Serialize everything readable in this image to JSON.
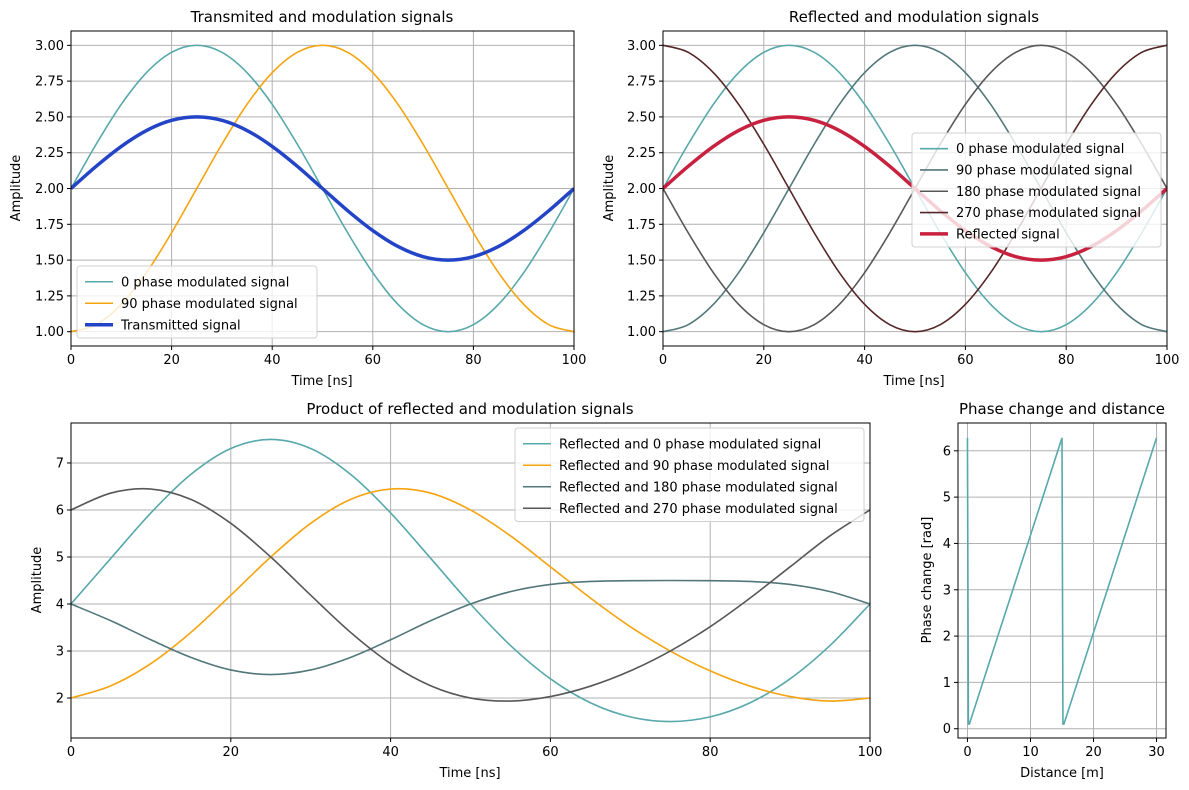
{
  "colors": {
    "teal": "#57a8ab",
    "orange": "#f5a30e",
    "slate": "#52777a",
    "darkgray": "#575757",
    "maroon": "#552627",
    "blue": "#2444c8",
    "crimson": "#c8213f"
  },
  "chart_data": [
    {
      "id": "transmitted",
      "type": "line",
      "title": "Transmited and modulation signals",
      "xlabel": "Time [ns]",
      "ylabel": "Amplitude",
      "xlim": [
        0,
        100
      ],
      "ylim": [
        0.9,
        3.1
      ],
      "xticks": [
        0,
        20,
        40,
        60,
        80,
        100
      ],
      "xticklabels": [
        "0",
        "20",
        "40",
        "60",
        "80",
        "100"
      ],
      "yticks": [
        1.0,
        1.25,
        1.5,
        1.75,
        2.0,
        2.25,
        2.5,
        2.75,
        3.0
      ],
      "yticklabels": [
        "1.00",
        "1.25",
        "1.50",
        "1.75",
        "2.00",
        "2.25",
        "2.50",
        "2.75",
        "3.00"
      ],
      "grid": true,
      "legend": "bottom-left",
      "series": [
        {
          "name": "0 phase modulated signal",
          "color": "#57a8ab",
          "width": 1.6,
          "x": [
            0,
            5,
            10,
            15,
            20,
            25,
            30,
            35,
            40,
            45,
            50,
            55,
            60,
            65,
            70,
            75,
            80,
            85,
            90,
            95,
            100
          ],
          "y": [
            2.0,
            2.309,
            2.588,
            2.809,
            2.951,
            3.0,
            2.951,
            2.809,
            2.588,
            2.309,
            2.0,
            1.691,
            1.412,
            1.191,
            1.049,
            1.0,
            1.049,
            1.191,
            1.412,
            1.691,
            2.0
          ]
        },
        {
          "name": "90 phase modulated signal",
          "color": "#f5a30e",
          "width": 1.6,
          "x": [
            0,
            5,
            10,
            15,
            20,
            25,
            30,
            35,
            40,
            45,
            50,
            55,
            60,
            65,
            70,
            75,
            80,
            85,
            90,
            95,
            100
          ],
          "y": [
            1.0,
            1.049,
            1.191,
            1.412,
            1.691,
            2.0,
            2.309,
            2.588,
            2.809,
            2.951,
            3.0,
            2.951,
            2.809,
            2.588,
            2.309,
            2.0,
            1.691,
            1.412,
            1.191,
            1.049,
            1.0
          ]
        },
        {
          "name": "Transmitted signal",
          "color": "#2444c8",
          "width": 3.5,
          "x": [
            0,
            5,
            10,
            15,
            20,
            25,
            30,
            35,
            40,
            45,
            50,
            55,
            60,
            65,
            70,
            75,
            80,
            85,
            90,
            95,
            100
          ],
          "y": [
            2.0,
            2.155,
            2.294,
            2.405,
            2.476,
            2.5,
            2.476,
            2.405,
            2.294,
            2.155,
            2.0,
            1.845,
            1.706,
            1.595,
            1.524,
            1.5,
            1.524,
            1.595,
            1.706,
            1.845,
            2.0
          ]
        }
      ]
    },
    {
      "id": "reflected",
      "type": "line",
      "title": "Reflected and modulation signals",
      "xlabel": "Time [ns]",
      "ylabel": "Amplitude",
      "xlim": [
        0,
        100
      ],
      "ylim": [
        0.9,
        3.1
      ],
      "xticks": [
        0,
        20,
        40,
        60,
        80,
        100
      ],
      "xticklabels": [
        "0",
        "20",
        "40",
        "60",
        "80",
        "100"
      ],
      "yticks": [
        1.0,
        1.25,
        1.5,
        1.75,
        2.0,
        2.25,
        2.5,
        2.75,
        3.0
      ],
      "yticklabels": [
        "1.00",
        "1.25",
        "1.50",
        "1.75",
        "2.00",
        "2.25",
        "2.50",
        "2.75",
        "3.00"
      ],
      "grid": true,
      "legend": "center-right",
      "series": [
        {
          "name": "0 phase modulated signal",
          "color": "#57a8ab",
          "width": 1.6,
          "x": [
            0,
            5,
            10,
            15,
            20,
            25,
            30,
            35,
            40,
            45,
            50,
            55,
            60,
            65,
            70,
            75,
            80,
            85,
            90,
            95,
            100
          ],
          "y": [
            2.0,
            2.309,
            2.588,
            2.809,
            2.951,
            3.0,
            2.951,
            2.809,
            2.588,
            2.309,
            2.0,
            1.691,
            1.412,
            1.191,
            1.049,
            1.0,
            1.049,
            1.191,
            1.412,
            1.691,
            2.0
          ]
        },
        {
          "name": "90 phase modulated signal",
          "color": "#52777a",
          "width": 1.6,
          "x": [
            0,
            5,
            10,
            15,
            20,
            25,
            30,
            35,
            40,
            45,
            50,
            55,
            60,
            65,
            70,
            75,
            80,
            85,
            90,
            95,
            100
          ],
          "y": [
            1.0,
            1.049,
            1.191,
            1.412,
            1.691,
            2.0,
            2.309,
            2.588,
            2.809,
            2.951,
            3.0,
            2.951,
            2.809,
            2.588,
            2.309,
            2.0,
            1.691,
            1.412,
            1.191,
            1.049,
            1.0
          ]
        },
        {
          "name": "180 phase modulated signal",
          "color": "#575757",
          "width": 1.6,
          "x": [
            0,
            5,
            10,
            15,
            20,
            25,
            30,
            35,
            40,
            45,
            50,
            55,
            60,
            65,
            70,
            75,
            80,
            85,
            90,
            95,
            100
          ],
          "y": [
            2.0,
            1.691,
            1.412,
            1.191,
            1.049,
            1.0,
            1.049,
            1.191,
            1.412,
            1.691,
            2.0,
            2.309,
            2.588,
            2.809,
            2.951,
            3.0,
            2.951,
            2.809,
            2.588,
            2.309,
            2.0
          ]
        },
        {
          "name": "270 phase modulated signal",
          "color": "#552627",
          "width": 1.6,
          "x": [
            0,
            5,
            10,
            15,
            20,
            25,
            30,
            35,
            40,
            45,
            50,
            55,
            60,
            65,
            70,
            75,
            80,
            85,
            90,
            95,
            100
          ],
          "y": [
            3.0,
            2.951,
            2.809,
            2.588,
            2.309,
            2.0,
            1.691,
            1.412,
            1.191,
            1.049,
            1.0,
            1.049,
            1.191,
            1.412,
            1.691,
            2.0,
            2.309,
            2.588,
            2.809,
            2.951,
            3.0
          ]
        },
        {
          "name": "Reflected signal",
          "color": "#c8213f",
          "width": 3.5,
          "x": [
            0,
            5,
            10,
            15,
            20,
            25,
            30,
            35,
            40,
            45,
            50,
            55,
            60,
            65,
            70,
            75,
            80,
            85,
            90,
            95,
            100
          ],
          "y": [
            2.0,
            2.155,
            2.294,
            2.405,
            2.476,
            2.5,
            2.476,
            2.405,
            2.294,
            2.155,
            2.0,
            1.845,
            1.706,
            1.595,
            1.524,
            1.5,
            1.524,
            1.595,
            1.706,
            1.845,
            2.0
          ]
        }
      ]
    },
    {
      "id": "product",
      "type": "line",
      "title": "Product of reflected and modulation signals",
      "xlabel": "Time [ns]",
      "ylabel": "Amplitude",
      "xlim": [
        0,
        100
      ],
      "ylim": [
        1.15,
        7.85
      ],
      "xticks": [
        0,
        20,
        40,
        60,
        80,
        100
      ],
      "xticklabels": [
        "0",
        "20",
        "40",
        "60",
        "80",
        "100"
      ],
      "yticks": [
        2,
        3,
        4,
        5,
        6,
        7
      ],
      "yticklabels": [
        "2",
        "3",
        "4",
        "5",
        "6",
        "7"
      ],
      "grid": true,
      "legend": "top-right",
      "series": [
        {
          "name": "Reflected and 0 phase modulated signal",
          "color": "#57a8ab",
          "width": 1.6,
          "x": [
            0,
            5,
            10,
            15,
            20,
            25,
            30,
            35,
            40,
            45,
            50,
            55,
            60,
            65,
            70,
            75,
            80,
            85,
            90,
            95,
            100
          ],
          "y": [
            4.0,
            4.975,
            5.938,
            6.756,
            7.307,
            7.5,
            7.307,
            6.756,
            5.938,
            4.975,
            4.0,
            3.119,
            2.409,
            1.9,
            1.599,
            1.5,
            1.599,
            1.9,
            2.409,
            3.119,
            4.0
          ]
        },
        {
          "name": "Reflected and 90 phase modulated signal",
          "color": "#f5a30e",
          "width": 1.6,
          "x": [
            0,
            5,
            10,
            15,
            20,
            25,
            30,
            35,
            40,
            45,
            50,
            55,
            60,
            65,
            70,
            75,
            80,
            85,
            90,
            95,
            100
          ],
          "y": [
            2.0,
            2.262,
            2.733,
            3.395,
            4.187,
            5.0,
            5.716,
            6.225,
            6.445,
            6.36,
            6.0,
            5.45,
            4.791,
            4.128,
            3.518,
            3.0,
            2.577,
            2.252,
            2.032,
            1.936,
            2.0
          ]
        },
        {
          "name": "Reflected and 180 phase modulated signal",
          "color": "#52777a",
          "width": 1.6,
          "x": [
            0,
            5,
            10,
            15,
            20,
            25,
            30,
            35,
            40,
            45,
            50,
            55,
            60,
            65,
            70,
            75,
            80,
            85,
            90,
            95,
            100
          ],
          "y": [
            4.0,
            3.643,
            3.239,
            2.865,
            2.597,
            2.5,
            2.597,
            2.865,
            3.239,
            3.643,
            4.0,
            4.263,
            4.416,
            4.48,
            4.496,
            4.5,
            4.496,
            4.48,
            4.416,
            4.263,
            4.0
          ]
        },
        {
          "name": "Reflected and 270 phase modulated signal",
          "color": "#575757",
          "width": 1.6,
          "x": [
            0,
            5,
            10,
            15,
            20,
            25,
            30,
            35,
            40,
            45,
            50,
            55,
            60,
            65,
            70,
            75,
            80,
            85,
            90,
            95,
            100
          ],
          "y": [
            6.0,
            6.36,
            6.445,
            6.225,
            5.716,
            5.0,
            4.187,
            3.395,
            2.733,
            2.262,
            2.0,
            1.936,
            2.032,
            2.252,
            2.577,
            3.0,
            3.518,
            4.128,
            4.791,
            5.45,
            6.0
          ]
        }
      ]
    },
    {
      "id": "phase",
      "type": "line",
      "title": "Phase change and distance",
      "xlabel": "Distance [m]",
      "ylabel": "Phase change [rad]",
      "xlim": [
        -1.5,
        31.5
      ],
      "ylim": [
        -0.2,
        6.6
      ],
      "xticks": [
        0,
        10,
        20,
        30
      ],
      "xticklabels": [
        "0",
        "10",
        "20",
        "30"
      ],
      "yticks": [
        0,
        1,
        2,
        3,
        4,
        5,
        6
      ],
      "yticklabels": [
        "0",
        "1",
        "2",
        "3",
        "4",
        "5",
        "6"
      ],
      "grid": true,
      "legend": "none",
      "series": [
        {
          "name": "",
          "color": "#57a8ab",
          "width": 1.6,
          "x": [
            0,
            0.15,
            0.3,
            15.0,
            15.15,
            15.3,
            30.0
          ],
          "y": [
            6.28,
            0.1,
            0.1,
            6.28,
            0.1,
            0.1,
            6.28
          ]
        }
      ]
    }
  ]
}
